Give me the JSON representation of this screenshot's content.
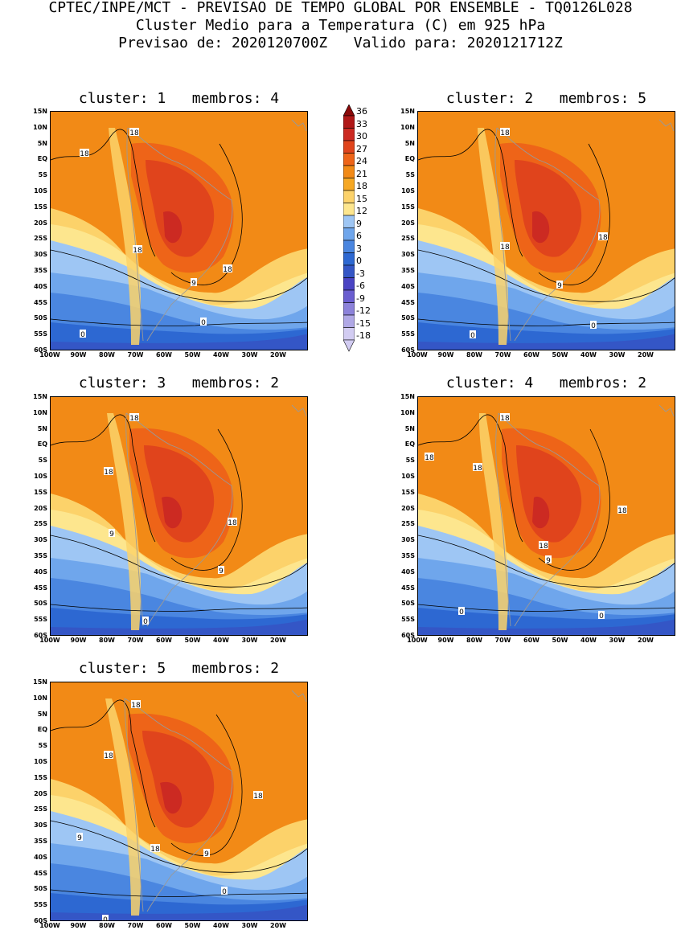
{
  "header": {
    "line1": "CPTEC/INPE/MCT - PREVISAO DE TEMPO GLOBAL POR ENSEMBLE - TQ0126L028",
    "line2": "Cluster Medio para a Temperatura (C) em 925 hPa",
    "line3": "Previsao de: 2020120700Z   Valido para: 2020121712Z"
  },
  "lat_labels": [
    "15N",
    "10N",
    "5N",
    "EQ",
    "5S",
    "10S",
    "15S",
    "20S",
    "25S",
    "30S",
    "35S",
    "40S",
    "45S",
    "50S",
    "55S",
    "60S"
  ],
  "lon_labels": [
    "100W",
    "90W",
    "80W",
    "70W",
    "60W",
    "50W",
    "40W",
    "30W",
    "20W"
  ],
  "colorbar": {
    "levels": [
      "36",
      "33",
      "30",
      "27",
      "24",
      "21",
      "18",
      "15",
      "12",
      "9",
      "6",
      "3",
      "0",
      "-3",
      "-6",
      "-9",
      "-12",
      "-15",
      "-18"
    ],
    "colors": [
      "#8b0a0a",
      "#b01818",
      "#cc2a22",
      "#e0441c",
      "#ee6418",
      "#f28a16",
      "#f6a824",
      "#fcd26a",
      "#fde68e",
      "#9ec6f4",
      "#6fa6ec",
      "#4a86e0",
      "#2d68d2",
      "#3456c6",
      "#4a44c4",
      "#6a5ed0",
      "#8c82da",
      "#b0a8e6",
      "#d2ccf2"
    ]
  },
  "panels": [
    {
      "title": "cluster: 1   membros: 4",
      "contours": [
        "18",
        "18",
        "18",
        "18",
        "9",
        "0",
        "0"
      ]
    },
    {
      "title": "cluster: 2   membros: 5",
      "contours": [
        "18",
        "18",
        "18",
        "9",
        "0",
        "0"
      ]
    },
    {
      "title": "cluster: 3   membros: 2",
      "contours": [
        "18",
        "18",
        "18",
        "9",
        "9",
        "0"
      ]
    },
    {
      "title": "cluster: 4   membros: 2",
      "contours": [
        "18",
        "18",
        "18",
        "18",
        "18",
        "9",
        "0",
        "0"
      ]
    },
    {
      "title": "cluster: 5   membros: 2",
      "contours": [
        "18",
        "18",
        "18",
        "9",
        "18",
        "9",
        "0",
        "0"
      ]
    }
  ]
}
